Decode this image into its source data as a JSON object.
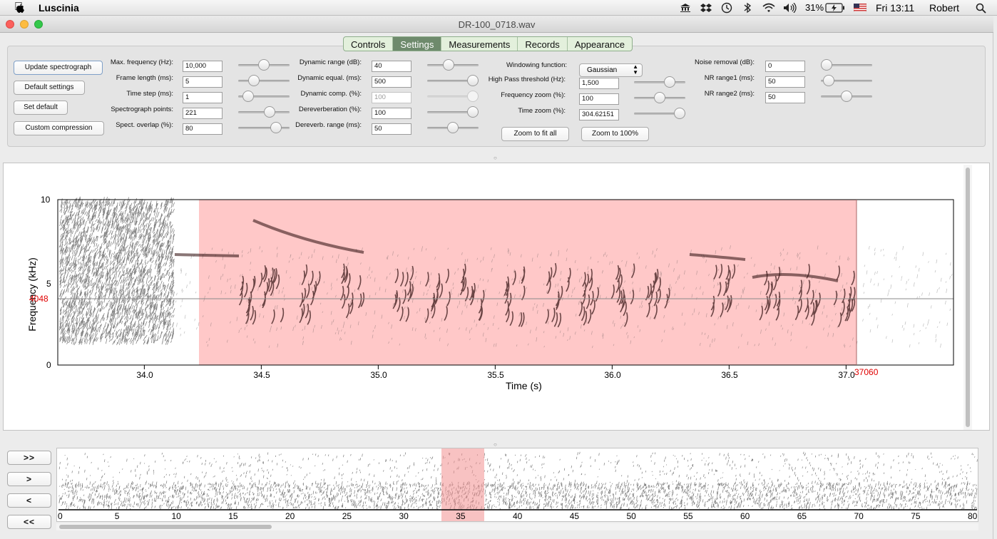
{
  "menubar": {
    "app_name": "Luscinia",
    "battery": "31%",
    "clock": "Fri 13:11",
    "user": "Robert",
    "icons": [
      "apple-icon",
      "museum-icon",
      "dropbox-icon",
      "time-machine-icon",
      "bluetooth-icon",
      "wifi-icon",
      "volume-icon",
      "battery-icon",
      "flag-icon",
      "search-icon"
    ]
  },
  "window": {
    "title": "DR-100_0718.wav"
  },
  "tabs": [
    {
      "label": "Controls",
      "active": false
    },
    {
      "label": "Settings",
      "active": true
    },
    {
      "label": "Measurements",
      "active": false
    },
    {
      "label": "Records",
      "active": false
    },
    {
      "label": "Appearance",
      "active": false
    }
  ],
  "buttons": {
    "update": "Update spectrograph",
    "defaults": "Default settings",
    "set_default": "Set default",
    "custom_compression": "Custom compression",
    "zoom_fit": "Zoom to fit all",
    "zoom_100": "Zoom to 100%"
  },
  "settings": {
    "col1": [
      {
        "label": "Max. frequency (Hz):",
        "value": "10,000",
        "slider": 0.5
      },
      {
        "label": "Frame length (ms):",
        "value": "5",
        "slider": 0.25
      },
      {
        "label": "Time step (ms):",
        "value": "1",
        "slider": 0.1
      },
      {
        "label": "Spectrograph points:",
        "value": "221",
        "slider": 0.65
      },
      {
        "label": "Spect. overlap (%):",
        "value": "80",
        "slider": 0.8
      }
    ],
    "col2": [
      {
        "label": "Dynamic range (dB):",
        "value": "40",
        "slider": 0.4
      },
      {
        "label": "Dynamic equal. (ms):",
        "value": "500",
        "slider": 1.0
      },
      {
        "label": "Dynamic comp. (%):",
        "value": "100",
        "slider": 1.0,
        "disabled": true
      },
      {
        "label": "Dereverberation (%):",
        "value": "100",
        "slider": 1.0
      },
      {
        "label": "Dereverb. range (ms):",
        "value": "50",
        "slider": 0.5
      }
    ],
    "col3": {
      "windowing_label": "Windowing function:",
      "windowing_value": "Gaussian",
      "rows": [
        {
          "label": "High Pass threshold (Hz):",
          "value": "1,500",
          "slider": 0.75
        },
        {
          "label": "Frequency zoom (%):",
          "value": "100",
          "slider": 0.5
        },
        {
          "label": "Time zoom (%):",
          "value": "304.62151",
          "slider": 1.0
        }
      ]
    },
    "col4": [
      {
        "label": "Noise removal (dB):",
        "value": "0",
        "slider": 0.0
      },
      {
        "label": "NR range1 (ms):",
        "value": "50",
        "slider": 0.05
      },
      {
        "label": "NR range2 (ms):",
        "value": "50",
        "slider": 0.5
      }
    ]
  },
  "spectrograph": {
    "ylabel": "Frequency (kHz)",
    "xlabel": "Time (s)",
    "yticks": [
      "10",
      "5",
      "0"
    ],
    "xticks": [
      "34.0",
      "34.5",
      "35.0",
      "35.5",
      "36.0",
      "36.5",
      "37.0"
    ],
    "cursor_freq": "4048",
    "cursor_time": "37060",
    "selection_color": "#ffc8c8",
    "cursor_color": "#e00000"
  },
  "overview": {
    "xticks": [
      "0",
      "5",
      "10",
      "15",
      "20",
      "25",
      "30",
      "35",
      "40",
      "45",
      "50",
      "55",
      "60",
      "65",
      "70",
      "75",
      "80"
    ]
  },
  "nav_buttons": {
    "ff": ">>",
    "f": ">",
    "b": "<",
    "bb": "<<"
  }
}
